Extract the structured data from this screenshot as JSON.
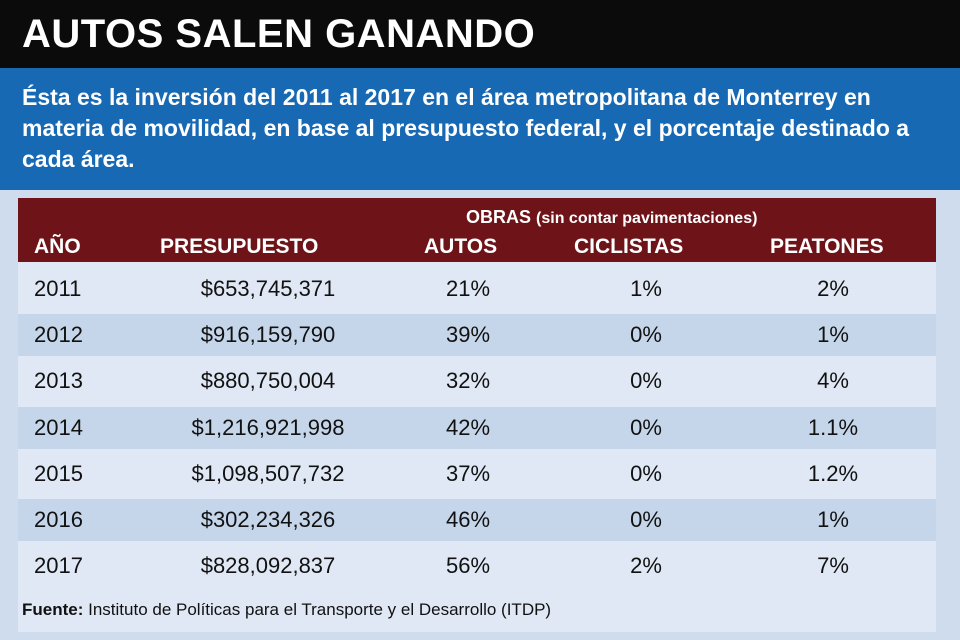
{
  "title": "AUTOS SALEN GANANDO",
  "subtitle": "Ésta es la inversión del 2011 al 2017 en el área metropolitana de Monterrey en materia de movilidad, en base al presupuesto federal, y el porcentaje destinado a cada área.",
  "header": {
    "group_label": "OBRAS",
    "group_note": "(sin contar pavimentaciones)",
    "year": "AÑO",
    "budget": "PRESUPUESTO",
    "autos": "AUTOS",
    "ciclistas": "CICLISTAS",
    "peatones": "PEATONES"
  },
  "colors": {
    "title_bg": "#0b0b0b",
    "subtitle_bg": "#1769b3",
    "header_bg": "#6e1419",
    "row_light": "#dfe8f4",
    "row_dark": "#c6d6ea"
  },
  "chart_data": {
    "type": "table",
    "columns": [
      "AÑO",
      "PRESUPUESTO",
      "AUTOS",
      "CICLISTAS",
      "PEATONES"
    ],
    "rows": [
      [
        "2011",
        "$653,745,371",
        "21%",
        "1%",
        "2%"
      ],
      [
        "2012",
        "$916,159,790",
        "39%",
        "0%",
        "1%"
      ],
      [
        "2013",
        "$880,750,004",
        "32%",
        "0%",
        "4%"
      ],
      [
        "2014",
        "$1,216,921,998",
        "42%",
        "0%",
        "1.1%"
      ],
      [
        "2015",
        "$1,098,507,732",
        "37%",
        "0%",
        "1.2%"
      ],
      [
        "2016",
        "$302,234,326",
        "46%",
        "0%",
        "1%"
      ],
      [
        "2017",
        "$828,092,837",
        "56%",
        "2%",
        "7%"
      ]
    ]
  },
  "source": {
    "label": "Fuente:",
    "text": "Instituto de Políticas para el Transporte y el Desarrollo (ITDP)"
  }
}
